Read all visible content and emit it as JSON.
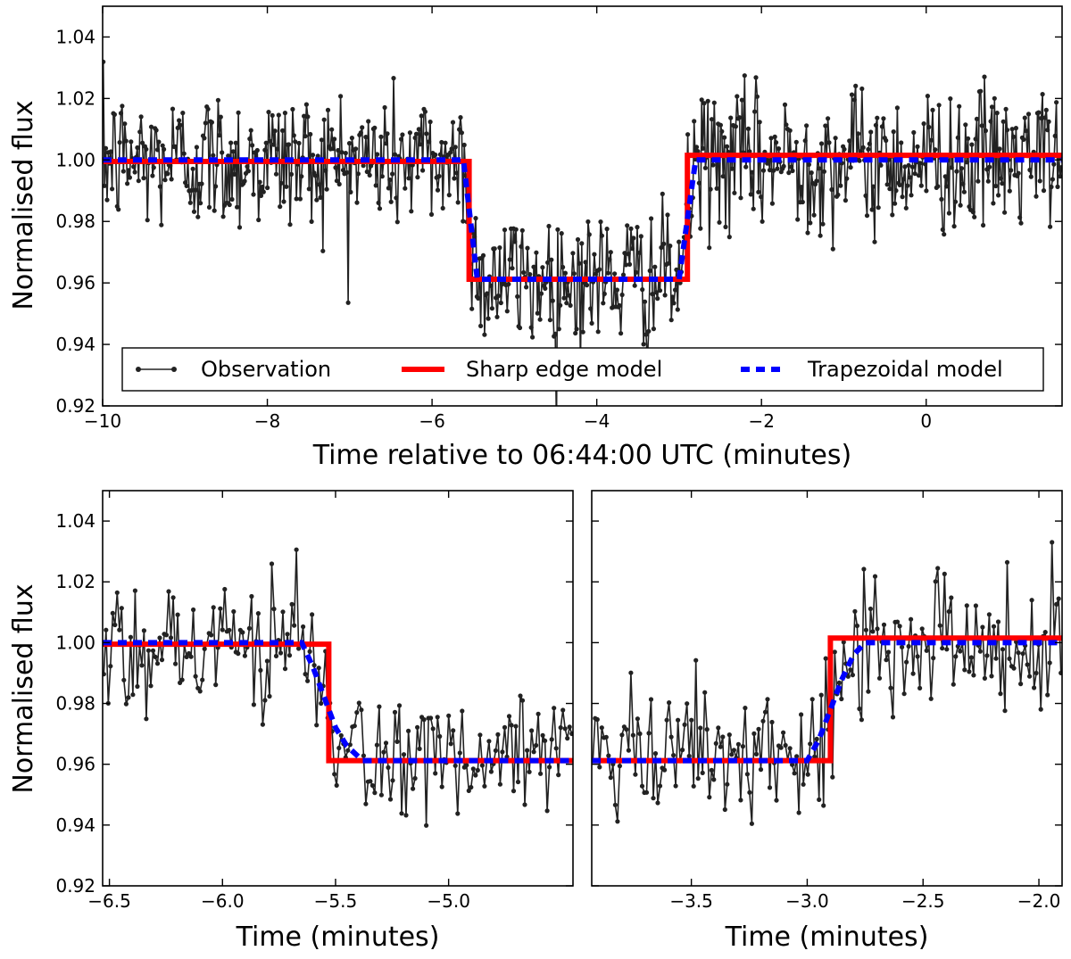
{
  "chart_data": [
    {
      "type": "line",
      "panel": "top",
      "xlabel": "Time relative to 06:44:00 UTC (minutes)",
      "ylabel": "Normalised flux",
      "xlim": [
        -10.0,
        1.65
      ],
      "ylim": [
        0.92,
        1.05
      ],
      "xticks": [
        -10,
        -8,
        -6,
        -4,
        -2,
        0
      ],
      "xtick_labels": [
        "−10",
        "−8",
        "−6",
        "−4",
        "−2",
        "0"
      ],
      "yticks": [
        0.92,
        0.94,
        0.96,
        0.98,
        1.0,
        1.02,
        1.04
      ],
      "ytick_labels": [
        "0.92",
        "0.94",
        "0.96",
        "0.98",
        "1.00",
        "1.02",
        "1.04"
      ],
      "legend": {
        "placement": "bottom",
        "entries": [
          "Observation",
          "Sharp edge model",
          "Trapezoidal model"
        ]
      },
      "series": [
        {
          "name": "Observation",
          "color": "#222222",
          "style": "line-with-dots",
          "x": [
            -10.0,
            -9.7,
            -9.4,
            -9.1,
            -8.8,
            -8.5,
            -8.2,
            -7.9,
            -7.6,
            -7.3,
            -7.0,
            -6.7,
            -6.4,
            -6.1,
            -5.8,
            -5.6,
            -5.5,
            -5.3,
            -5.0,
            -4.7,
            -4.4,
            -4.1,
            -3.8,
            -3.5,
            -3.2,
            -3.0,
            -2.9,
            -2.7,
            -2.4,
            -2.1,
            -1.8,
            -1.5,
            -1.2,
            -0.9,
            -0.6,
            -0.3,
            0.0,
            0.3,
            0.6,
            0.9,
            1.2,
            1.5
          ],
          "y": [
            1.0,
            0.985,
            1.012,
            0.995,
            1.02,
            0.99,
            1.005,
            0.978,
            1.008,
            0.992,
            1.01,
            0.988,
            1.003,
            0.997,
            1.004,
            0.985,
            0.962,
            0.95,
            0.966,
            0.945,
            0.96,
            0.97,
            0.955,
            0.968,
            0.962,
            0.975,
            0.998,
            1.01,
            0.99,
            1.015,
            0.985,
            1.008,
            0.995,
            1.012,
            0.988,
            1.005,
            0.993,
            1.018,
            0.99,
            1.01,
            0.985,
            1.003
          ]
        },
        {
          "name": "Sharp edge model",
          "color": "#ff0000",
          "style": "solid",
          "x": [
            -10.0,
            -5.55,
            -5.55,
            -2.9,
            -2.9,
            1.65
          ],
          "y": [
            0.9995,
            0.9995,
            0.9612,
            0.9612,
            1.0015,
            1.0015
          ]
        },
        {
          "name": "Trapezoidal model",
          "color": "#0000ff",
          "style": "dashed",
          "x": [
            -10.0,
            -5.62,
            -5.45,
            -3.0,
            -2.8,
            1.65
          ],
          "y": [
            1.0,
            1.0,
            0.9612,
            0.9612,
            1.0,
            1.0
          ]
        }
      ]
    },
    {
      "type": "line",
      "panel": "bottom-left",
      "xlabel": "Time (minutes)",
      "ylabel": "Normalised flux",
      "xlim": [
        -6.53,
        -4.45
      ],
      "ylim": [
        0.92,
        1.05
      ],
      "xticks": [
        -6.5,
        -6.0,
        -5.5,
        -5.0
      ],
      "xtick_labels": [
        "−6.5",
        "−6.0",
        "−5.5",
        "−5.0"
      ],
      "yticks": [
        0.92,
        0.94,
        0.96,
        0.98,
        1.0,
        1.02,
        1.04
      ],
      "ytick_labels": [
        "0.92",
        "0.94",
        "0.96",
        "0.98",
        "1.00",
        "1.02",
        "1.04"
      ],
      "series": [
        {
          "name": "Observation",
          "color": "#222222",
          "style": "line-with-dots",
          "x": [
            -6.5,
            -6.4,
            -6.3,
            -6.2,
            -6.1,
            -6.0,
            -5.9,
            -5.8,
            -5.7,
            -5.6,
            -5.55,
            -5.5,
            -5.4,
            -5.3,
            -5.2,
            -5.1,
            -5.0,
            -4.9,
            -4.8,
            -4.7,
            -4.6,
            -4.5
          ],
          "y": [
            1.002,
            0.985,
            1.015,
            0.99,
            1.006,
            0.982,
            0.998,
            1.012,
            0.987,
            0.995,
            0.98,
            0.962,
            0.95,
            0.965,
            0.955,
            0.968,
            0.958,
            0.972,
            0.954,
            0.966,
            0.96,
            0.97
          ]
        },
        {
          "name": "Sharp edge model",
          "color": "#ff0000",
          "style": "solid",
          "x": [
            -6.53,
            -5.53,
            -5.53,
            -4.45
          ],
          "y": [
            0.9995,
            0.9995,
            0.9612,
            0.9612
          ]
        },
        {
          "name": "Trapezoidal model",
          "color": "#0000ff",
          "style": "dashed",
          "x": [
            -6.53,
            -5.65,
            -5.6,
            -5.55,
            -5.5,
            -5.45,
            -5.38,
            -4.45
          ],
          "y": [
            1.0,
            1.0,
            0.992,
            0.982,
            0.972,
            0.966,
            0.9612,
            0.9612
          ]
        }
      ]
    },
    {
      "type": "line",
      "panel": "bottom-right",
      "xlabel": "Time (minutes)",
      "ylabel": "",
      "xlim": [
        -3.93,
        -1.9
      ],
      "ylim": [
        0.92,
        1.05
      ],
      "xticks": [
        -3.5,
        -3.0,
        -2.5,
        -2.0
      ],
      "xtick_labels": [
        "−3.5",
        "−3.0",
        "−2.5",
        "−2.0"
      ],
      "yticks": [
        0.92,
        0.94,
        0.96,
        0.98,
        1.0,
        1.02,
        1.04
      ],
      "ytick_labels": [
        "0.92",
        "0.94",
        "0.96",
        "0.98",
        "1.00",
        "1.02",
        "1.04"
      ],
      "series": [
        {
          "name": "Observation",
          "color": "#222222",
          "style": "line-with-dots",
          "x": [
            -3.9,
            -3.8,
            -3.7,
            -3.6,
            -3.5,
            -3.4,
            -3.3,
            -3.2,
            -3.1,
            -3.0,
            -2.95,
            -2.9,
            -2.85,
            -2.8,
            -2.7,
            -2.6,
            -2.5,
            -2.4,
            -2.3,
            -2.2,
            -2.1,
            -2.0,
            -1.92
          ],
          "y": [
            0.948,
            0.965,
            0.95,
            0.972,
            0.96,
            0.978,
            0.955,
            0.968,
            0.962,
            0.975,
            0.985,
            0.99,
            1.0,
            1.005,
            0.995,
            1.018,
            0.99,
            1.012,
            0.985,
            1.008,
            0.992,
            1.01,
            0.995
          ]
        },
        {
          "name": "Sharp edge model",
          "color": "#ff0000",
          "style": "solid",
          "x": [
            -3.93,
            -2.9,
            -2.9,
            -1.9
          ],
          "y": [
            0.9612,
            0.9612,
            1.0015,
            1.0015
          ]
        },
        {
          "name": "Trapezoidal model",
          "color": "#0000ff",
          "style": "dashed",
          "x": [
            -3.93,
            -3.0,
            -2.95,
            -2.9,
            -2.85,
            -2.8,
            -2.75,
            -1.9
          ],
          "y": [
            0.9612,
            0.9612,
            0.968,
            0.978,
            0.988,
            0.996,
            1.0,
            1.0
          ]
        }
      ]
    }
  ]
}
